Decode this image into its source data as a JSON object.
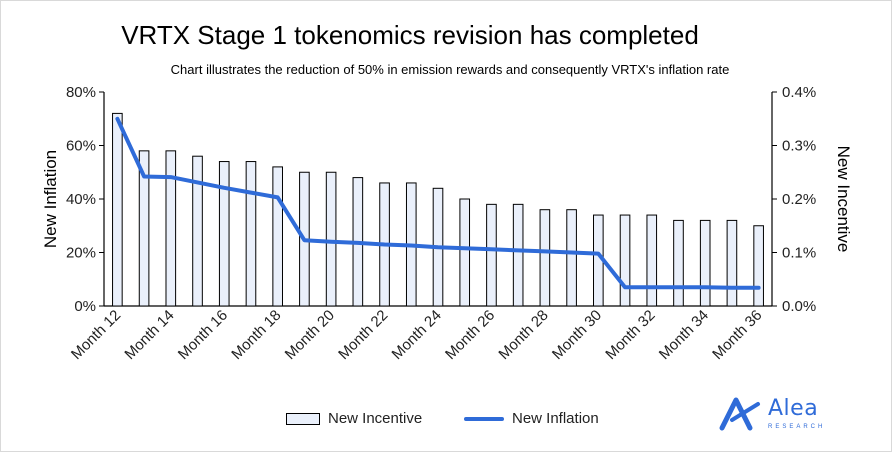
{
  "chart_data": {
    "type": "bar-line-combo",
    "title": "VRTX Stage 1 tokenomics revision has completed",
    "subtitle": "Chart illustrates the reduction of 50% in emission rewards and consequently VRTX's inflation rate",
    "categories": [
      "Month 12",
      "Month 13",
      "Month 14",
      "Month 15",
      "Month 16",
      "Month 17",
      "Month 18",
      "Month 19",
      "Month 20",
      "Month 21",
      "Month 22",
      "Month 23",
      "Month 24",
      "Month 25",
      "Month 26",
      "Month 27",
      "Month 28",
      "Month 29",
      "Month 30",
      "Month 31",
      "Month 32",
      "Month 33",
      "Month 34",
      "Month 35",
      "Month 36"
    ],
    "x_tick_labels": [
      "Month 12",
      "Month 14",
      "Month 16",
      "Month 18",
      "Month 20",
      "Month 22",
      "Month 24",
      "Month 26",
      "Month 28",
      "Month 30",
      "Month 32",
      "Month 34",
      "Month 36"
    ],
    "series": [
      {
        "name": "New Incentive",
        "type": "bar",
        "axis": "left",
        "values": [
          72,
          58,
          58,
          56,
          54,
          54,
          52,
          50,
          50,
          48,
          46,
          46,
          44,
          40,
          38,
          38,
          36,
          36,
          34,
          34,
          34,
          32,
          32,
          32,
          30
        ]
      },
      {
        "name": "New Inflation",
        "type": "line",
        "axis": "right",
        "values": [
          0.35,
          0.242,
          0.241,
          0.231,
          0.221,
          0.212,
          0.203,
          0.123,
          0.12,
          0.118,
          0.115,
          0.113,
          0.11,
          0.108,
          0.106,
          0.104,
          0.102,
          0.1,
          0.098,
          0.035,
          0.035,
          0.035,
          0.035,
          0.034,
          0.034
        ]
      }
    ],
    "y_left": {
      "label": "New Inflation",
      "min": 0,
      "max": 80,
      "ticks": [
        "0%",
        "20%",
        "40%",
        "60%",
        "80%"
      ]
    },
    "y_right": {
      "label": "New Incentive",
      "min": 0,
      "max": 0.4,
      "ticks": [
        "0.0%",
        "0.1%",
        "0.2%",
        "0.3%",
        "0.4%"
      ]
    },
    "grid": false,
    "legend": "bottom-center",
    "colors": {
      "bar_fill": "#eaf0fb",
      "bar_stroke": "#000000",
      "line": "#2f6bd8"
    }
  },
  "brand": {
    "name": "Alea",
    "tagline": "RESEARCH",
    "color": "#2f6bd8",
    "icon": "alea-logo-icon"
  }
}
